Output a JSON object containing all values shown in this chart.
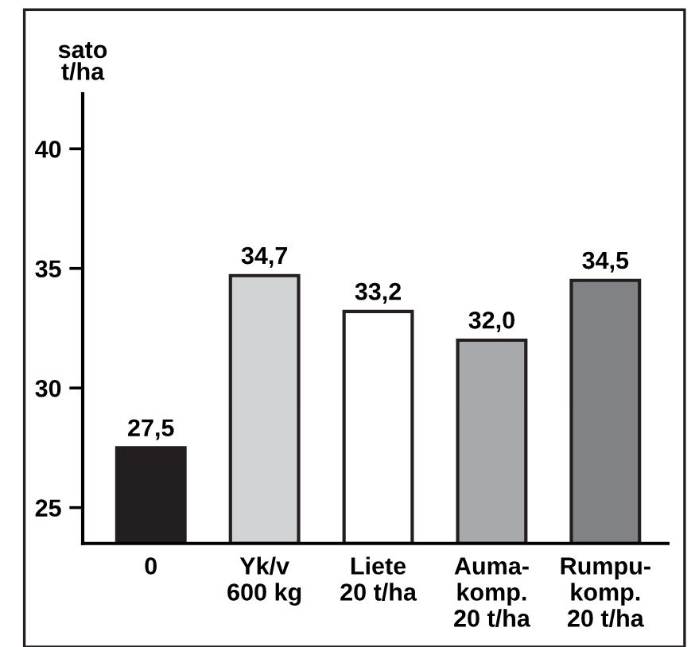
{
  "chart_data": {
    "type": "bar",
    "ylabel": "sato\nt/ha",
    "categories": [
      "0",
      "Yk/v\n600 kg",
      "Liete\n20 t/ha",
      "Auma-\nkomp.\n20 t/ha",
      "Rumpu-\nkomp.\n20 t/ha"
    ],
    "values": [
      27.5,
      34.7,
      33.2,
      32.0,
      34.5
    ],
    "value_labels": [
      "27,5",
      "34,7",
      "33,2",
      "32,0",
      "34,5"
    ],
    "colors": [
      "#231f20",
      "#d1d3d4",
      "#ffffff",
      "#a7a9ac",
      "#808285"
    ],
    "ylim": [
      23.5,
      42.3
    ],
    "yticks": [
      25,
      30,
      35,
      40
    ],
    "grid": false
  }
}
